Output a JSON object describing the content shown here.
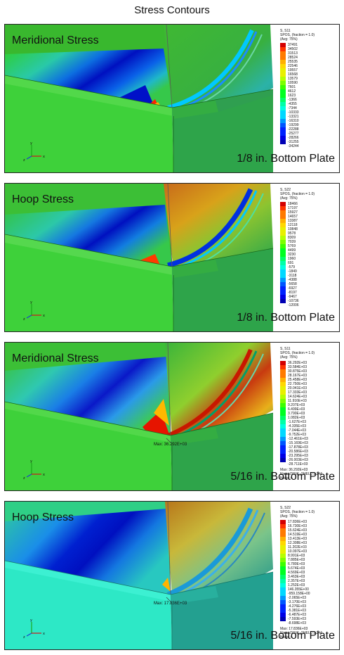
{
  "page_title": "Stress Contours",
  "legend_colors": [
    "#d40000",
    "#ff3300",
    "#ff7a00",
    "#ffb000",
    "#ffd800",
    "#e8f000",
    "#b6ff00",
    "#7cff00",
    "#3cff00",
    "#00ff22",
    "#00ff66",
    "#00ffa8",
    "#00ffe0",
    "#00d8ff",
    "#0099ff",
    "#0055ff",
    "#0022ff",
    "#0000e6",
    "#0000b4"
  ],
  "panels": [
    {
      "stress_title": "Meridional Stress",
      "plate_label": "1/8 in. Bottom Plate",
      "legend": {
        "header": [
          "S, S11",
          "SPOS, (fraction = 1.0)",
          "(Avg: 75%)"
        ],
        "values": [
          "37491",
          "34502",
          "31513",
          "28524",
          "25535",
          "22546",
          "19557",
          "16568",
          "13579",
          "10590",
          "7601",
          "4612",
          "1623",
          "-1366",
          "-4355",
          "-7344",
          "-10333",
          "-13321",
          "-16310",
          "-19299",
          "-22288",
          "-25277",
          "-28266",
          "-31255",
          "-34244"
        ],
        "footer": []
      },
      "max_label": ""
    },
    {
      "stress_title": "Hoop Stress",
      "plate_label": "1/8 in. Bottom Plate",
      "legend": {
        "header": [
          "S, S22",
          "SPOS, (fraction = 1.0)",
          "(Avg: 75%)"
        ],
        "values": [
          "18466",
          "17197",
          "15927",
          "14657",
          "13387",
          "12118",
          "10848",
          "9578",
          "8309",
          "7039",
          "5769",
          "4499",
          "3230",
          "1960",
          "691",
          "-579",
          "-1849",
          "-3118",
          "-4388",
          "-5658",
          "-6927",
          "-8197",
          "-9467",
          "-10736",
          "-12006"
        ],
        "footer": []
      },
      "max_label": ""
    },
    {
      "stress_title": "Meridional Stress",
      "plate_label": "5/16 in. Bottom Plate",
      "legend": {
        "header": [
          "S, S11",
          "SPOS, (fraction = 1.0)",
          "(Avg: 75%)"
        ],
        "values": [
          "36.292E+03",
          "33.584E+03",
          "30.875E+03",
          "28.167E+03",
          "25.458E+03",
          "22.750E+03",
          "20.041E+03",
          "17.333E+03",
          "14.624E+03",
          "11.916E+03",
          "9.207E+03",
          "6.499E+03",
          "3.790E+03",
          "1.082E+03",
          "-1.627E+03",
          "-4.335E+03",
          "-7.044E+03",
          "-9.752E+03",
          "-12.461E+03",
          "-15.169E+03",
          "-17.878E+03",
          "-20.586E+03",
          "-23.295E+03",
          "-26.003E+03",
          "-28.711E+03"
        ],
        "footer": [
          "Max: 36.292E+03",
          "Elem: TANK_SHELL-1.244",
          "Node: 4"
        ]
      },
      "max_label": "Max: 36.292E+03"
    },
    {
      "stress_title": "Hoop Stress",
      "plate_label": "5/16 in. Bottom Plate",
      "legend": {
        "header": [
          "S, S22",
          "SPOS, (fraction = 1.0)",
          "(Avg: 75%)"
        ],
        "values": [
          "17.836E+03",
          "16.730E+03",
          "15.624E+03",
          "14.519E+03",
          "13.413E+03",
          "12.308E+03",
          "11.202E+03",
          "10.097E+03",
          "8.991E+03",
          "7.885E+03",
          "6.780E+03",
          "5.674E+03",
          "4.569E+03",
          "3.463E+03",
          "2.357E+03",
          "1.252E+03",
          "146.355E+00",
          "-959.158E+00",
          "-2.065E+03",
          "-3.170E+03",
          "-4.276E+03",
          "-5.381E+03",
          "-6.487E+03",
          "-7.593E+03",
          "-8.698E+03"
        ],
        "footer": [
          "Max: 17.836E+03",
          "Elem: TANK_SHELL-1.244",
          "Node: 4"
        ]
      },
      "max_label": "Max: 17.836E+03"
    }
  ]
}
